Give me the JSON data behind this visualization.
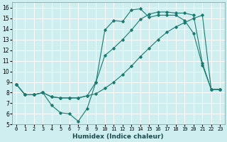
{
  "xlabel": "Humidex (Indice chaleur)",
  "background_color": "#ceeef0",
  "grid_color": "#ffffff",
  "line_color": "#1a7a6e",
  "xlim": [
    -0.5,
    23.5
  ],
  "ylim": [
    5,
    16.5
  ],
  "xticks": [
    0,
    1,
    2,
    3,
    4,
    5,
    6,
    7,
    8,
    9,
    10,
    11,
    12,
    13,
    14,
    15,
    16,
    17,
    18,
    19,
    20,
    21,
    22,
    23
  ],
  "yticks": [
    5,
    6,
    7,
    8,
    9,
    10,
    11,
    12,
    13,
    14,
    15,
    16
  ],
  "line1_x": [
    0,
    1,
    2,
    3,
    4,
    5,
    6,
    7,
    8,
    9,
    10,
    11,
    12,
    13,
    14,
    15,
    16,
    17,
    18,
    19,
    20,
    21,
    22,
    23
  ],
  "line1_y": [
    8.8,
    7.8,
    7.8,
    8.0,
    6.8,
    6.1,
    6.0,
    5.3,
    6.5,
    9.0,
    13.9,
    14.8,
    14.7,
    15.8,
    15.9,
    15.1,
    15.3,
    15.3,
    15.3,
    14.8,
    13.6,
    10.6,
    8.3,
    8.3
  ],
  "line2_x": [
    0,
    1,
    2,
    3,
    4,
    5,
    6,
    7,
    8,
    9,
    10,
    11,
    12,
    13,
    14,
    15,
    16,
    17,
    18,
    19,
    20,
    21,
    22,
    23
  ],
  "line2_y": [
    8.8,
    7.8,
    7.8,
    8.0,
    7.6,
    7.5,
    7.5,
    7.5,
    7.7,
    7.9,
    8.4,
    9.0,
    9.7,
    10.5,
    11.4,
    12.2,
    13.0,
    13.7,
    14.2,
    14.6,
    15.0,
    15.3,
    8.3,
    8.3
  ],
  "line3_x": [
    0,
    1,
    2,
    3,
    4,
    5,
    6,
    7,
    8,
    9,
    10,
    11,
    12,
    13,
    14,
    15,
    16,
    17,
    18,
    19,
    20,
    21,
    22,
    23
  ],
  "line3_y": [
    8.8,
    7.8,
    7.8,
    8.0,
    7.6,
    7.5,
    7.5,
    7.5,
    7.7,
    9.0,
    11.5,
    12.2,
    13.0,
    13.9,
    14.9,
    15.4,
    15.6,
    15.6,
    15.5,
    15.5,
    15.3,
    10.8,
    8.3,
    8.3
  ]
}
